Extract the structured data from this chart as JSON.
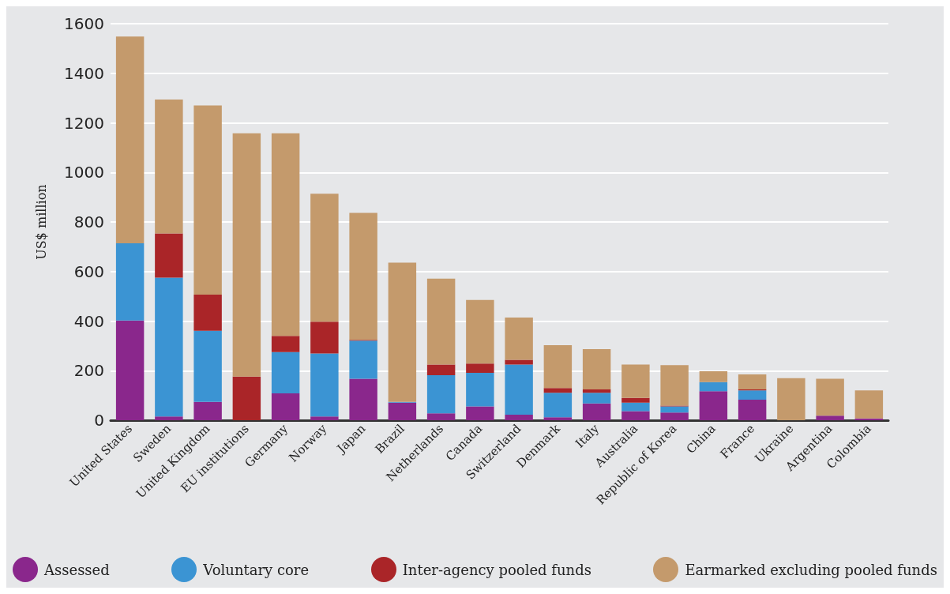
{
  "chart_data": {
    "type": "bar",
    "stacked": true,
    "ylabel": "US$ million",
    "categories": [
      "United States",
      "Sweden",
      "United Kingdom",
      "EU institutions",
      "Germany",
      "Norway",
      "Japan",
      "Brazil",
      "Netherlands",
      "Canada",
      "Switzerland",
      "Denmark",
      "Italy",
      "Australia",
      "Republic of Korea",
      "China",
      "France",
      "Ukraine",
      "Argentina",
      "Colombia"
    ],
    "series": [
      {
        "name": "Assessed",
        "color": "#8a278c",
        "values": [
          402,
          15,
          74,
          0,
          108,
          15,
          167,
          71,
          28,
          56,
          22,
          12,
          68,
          37,
          31,
          117,
          83,
          0,
          18,
          7
        ]
      },
      {
        "name": "Voluntary core",
        "color": "#3b94d3",
        "values": [
          312,
          560,
          287,
          0,
          167,
          254,
          154,
          3,
          154,
          135,
          203,
          99,
          43,
          34,
          25,
          37,
          37,
          0,
          0,
          0
        ]
      },
      {
        "name": "Inter-agency pooled funds",
        "color": "#aa2528",
        "values": [
          0,
          179,
          146,
          176,
          65,
          129,
          3,
          0,
          43,
          38,
          19,
          19,
          13,
          19,
          3,
          0,
          4,
          0,
          0,
          0
        ]
      },
      {
        "name": "Earmarked excluding pooled funds",
        "color": "#c49a6c",
        "values": [
          834,
          540,
          763,
          982,
          818,
          516,
          513,
          562,
          346,
          256,
          170,
          173,
          163,
          135,
          163,
          44,
          61,
          170,
          149,
          113
        ]
      }
    ],
    "ylim": [
      0,
      1600
    ],
    "yticks": [
      0,
      200,
      400,
      600,
      800,
      1000,
      1200,
      1400,
      1600
    ],
    "grid": "y",
    "legend": "bottom"
  }
}
